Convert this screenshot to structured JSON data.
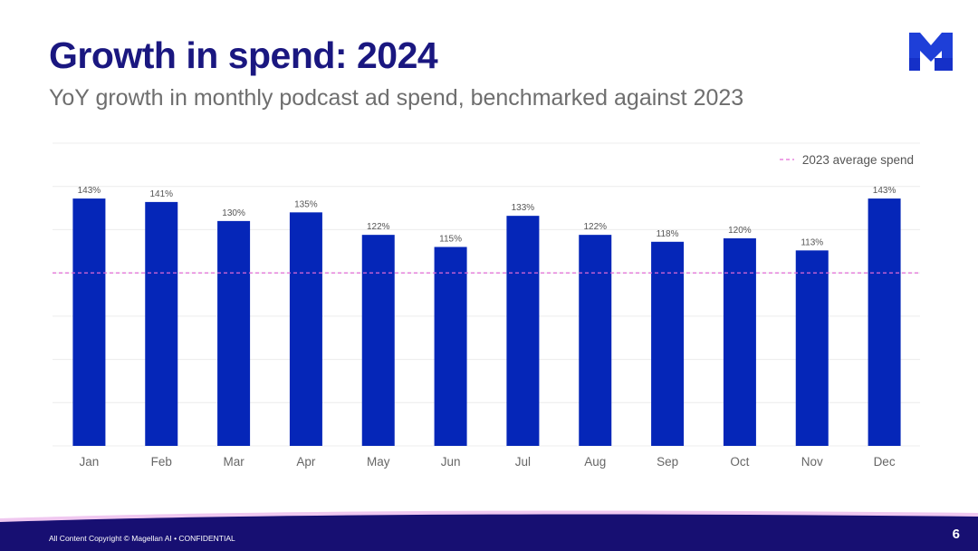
{
  "header": {
    "title": "Growth in spend: 2024",
    "subtitle": "YoY growth in monthly podcast ad spend, benchmarked against 2023",
    "logo_label": "M"
  },
  "colors": {
    "bar": "#0526b8",
    "title": "#1a1780",
    "reference_line": "#e26ad6",
    "grid": "#ececec",
    "footer": "#170f72",
    "footer_glow": "#f0c8f0"
  },
  "chart_data": {
    "type": "bar",
    "title": "",
    "xlabel": "",
    "ylabel": "",
    "categories": [
      "Jan",
      "Feb",
      "Mar",
      "Apr",
      "May",
      "Jun",
      "Jul",
      "Aug",
      "Sep",
      "Oct",
      "Nov",
      "Dec"
    ],
    "values": [
      143,
      141,
      130,
      135,
      122,
      115,
      133,
      122,
      118,
      120,
      113,
      143
    ],
    "labels": [
      "143%",
      "141%",
      "130%",
      "135%",
      "122%",
      "115%",
      "133%",
      "122%",
      "118%",
      "120%",
      "113%",
      "143%"
    ],
    "unit": "%",
    "ylim": [
      0,
      175
    ],
    "grid": true,
    "reference_line": {
      "value": 100,
      "label": "2023 average spend",
      "style": "dashed"
    },
    "legend": {
      "position": "top-right",
      "entries": [
        "2023 average spend"
      ]
    }
  },
  "footer": {
    "copyright": "All Content Copyright © Magellan AI • CONFIDENTIAL",
    "page_number": "6"
  }
}
